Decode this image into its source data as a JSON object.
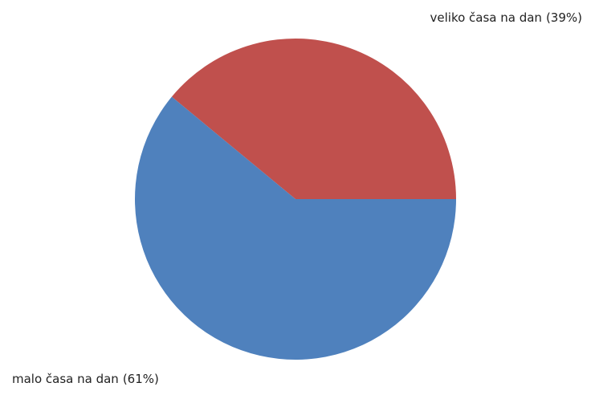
{
  "chart_data": {
    "type": "pie",
    "categories": [
      "veliko časa na dan",
      "malo časa na dan"
    ],
    "values": [
      39,
      61
    ],
    "value_labels": [
      "(39%)",
      "(61%)"
    ],
    "colors": [
      "#c0504d",
      "#4f81bd"
    ]
  }
}
